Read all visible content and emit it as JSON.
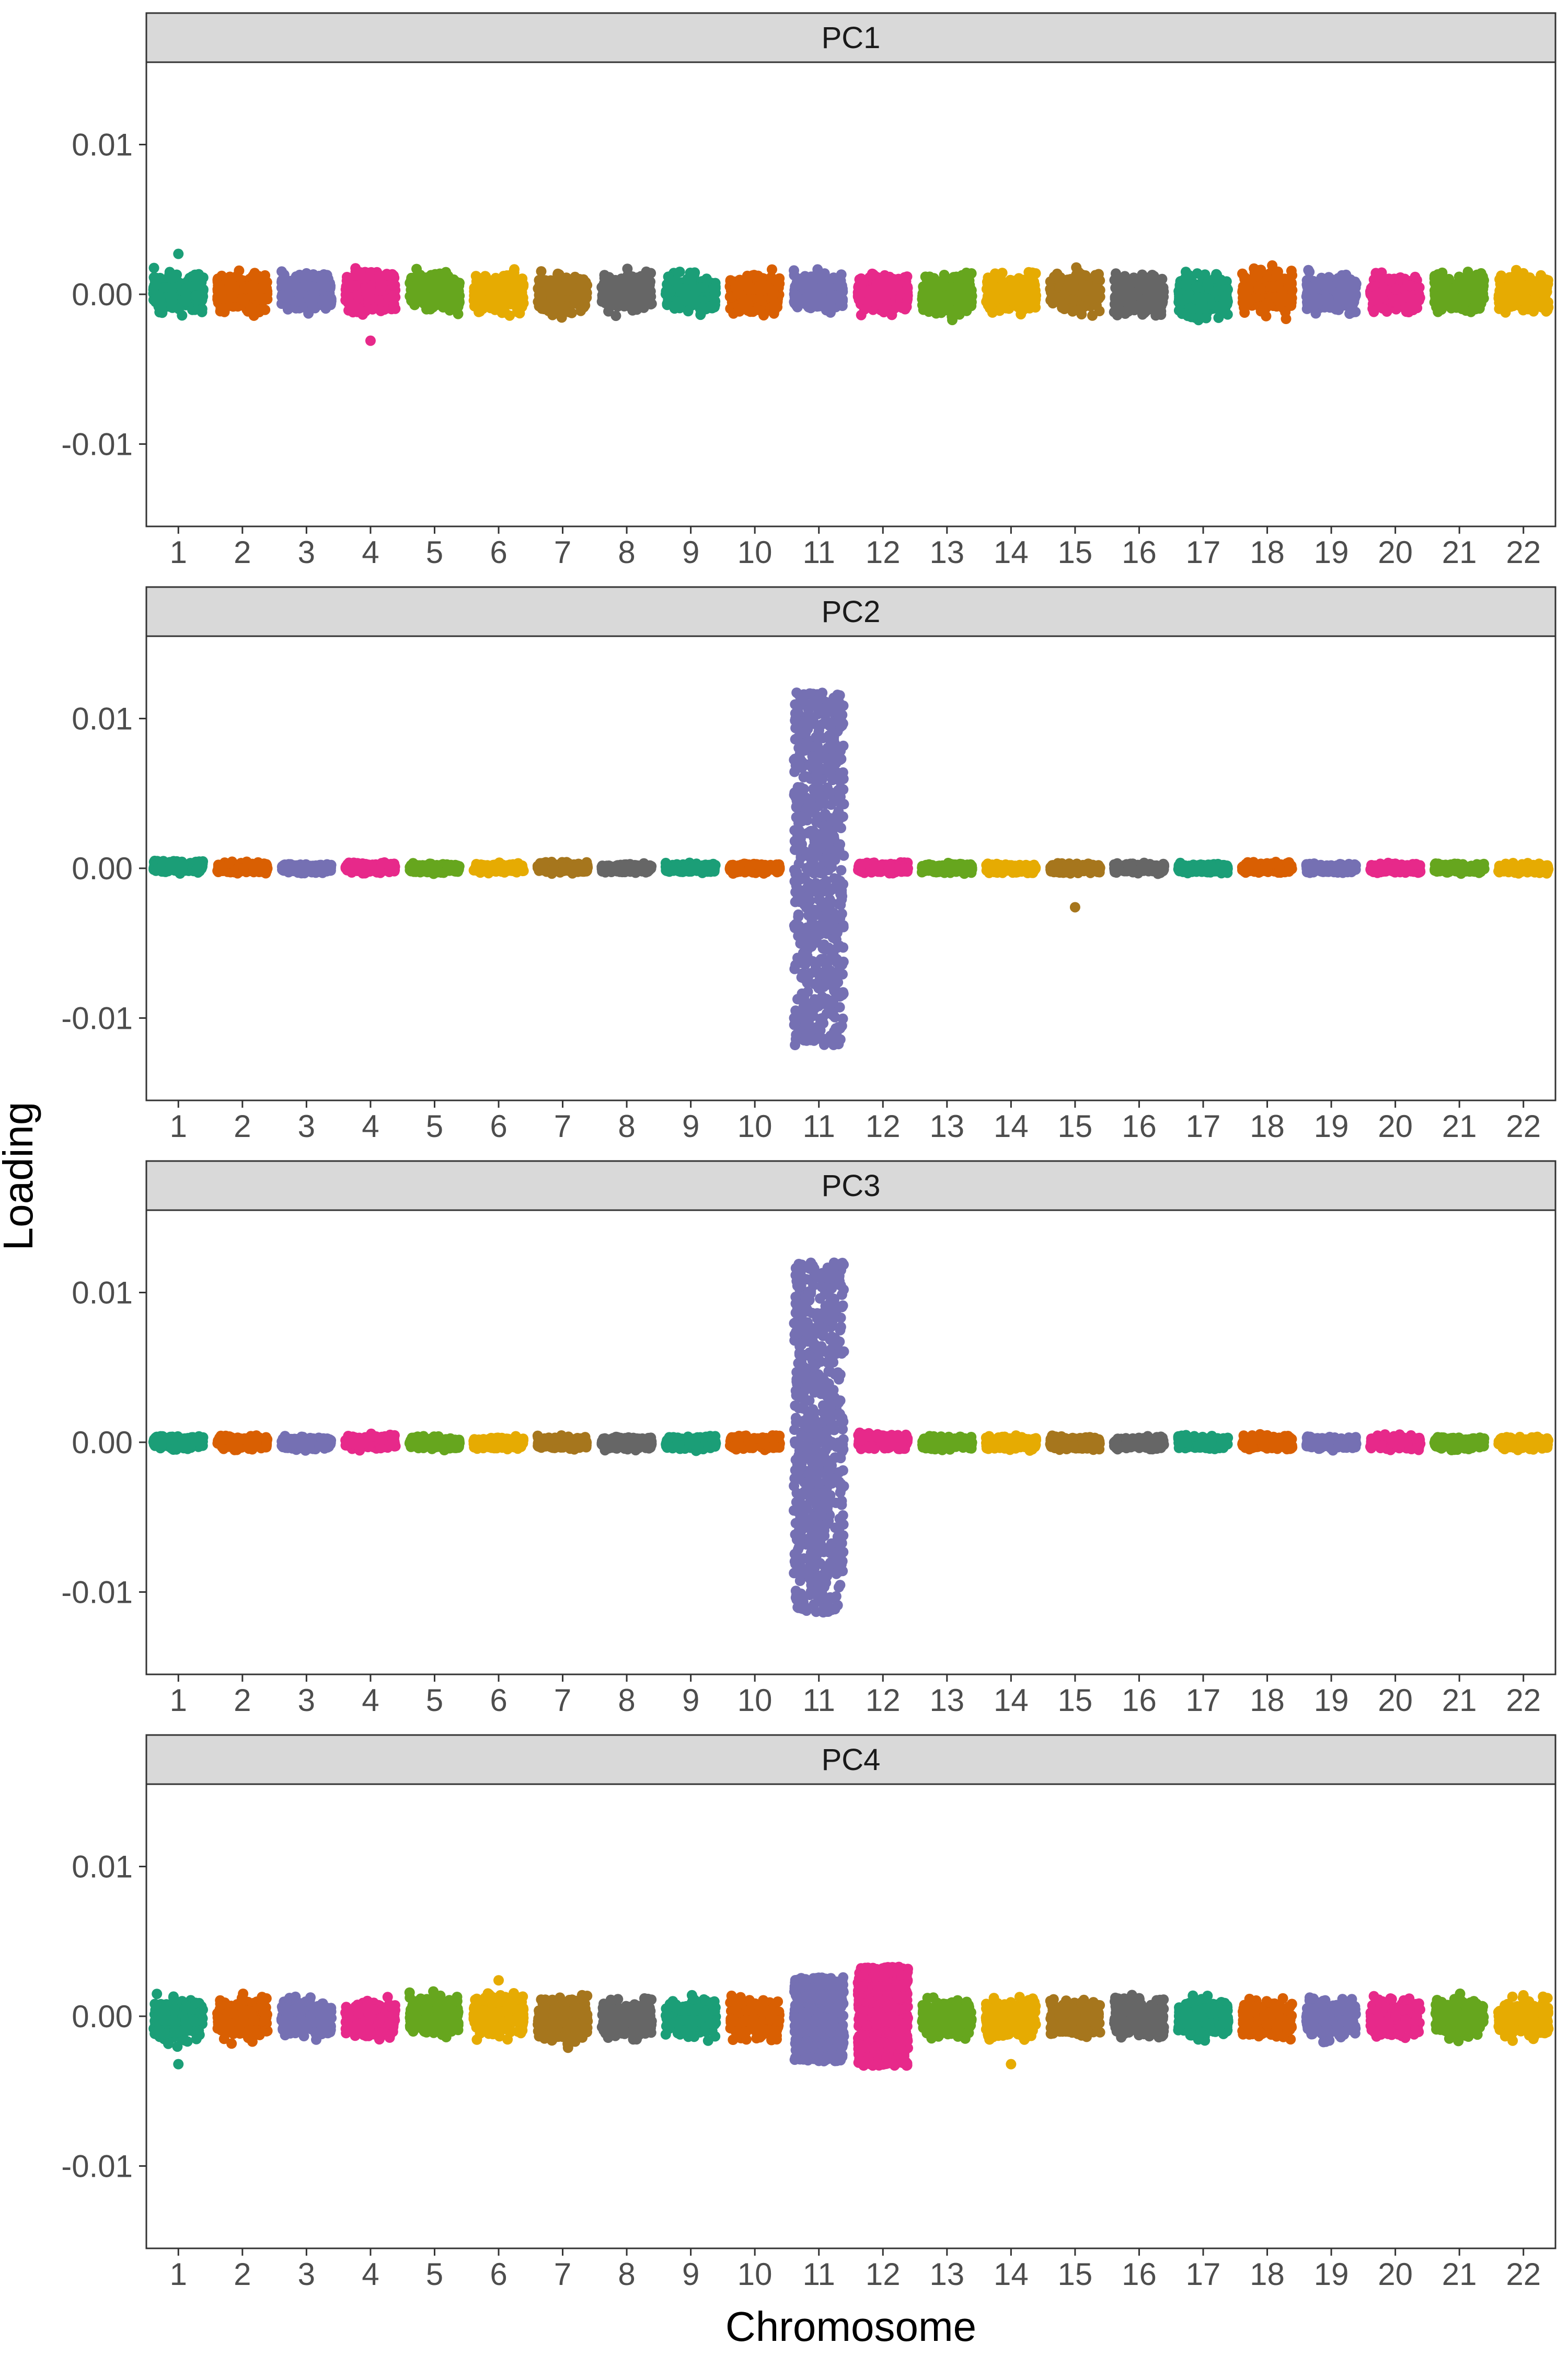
{
  "chart_data": {
    "type": "scatter",
    "title": "",
    "xlabel": "Chromosome",
    "ylabel": "Loading",
    "ylim": [
      -0.0155,
      0.0155
    ],
    "yticks": [
      -0.01,
      0.0,
      0.01
    ],
    "ytick_labels": [
      "-0.01",
      "0.00",
      "0.01"
    ],
    "categories": [
      "1",
      "2",
      "3",
      "4",
      "5",
      "6",
      "7",
      "8",
      "9",
      "10",
      "11",
      "12",
      "13",
      "14",
      "15",
      "16",
      "17",
      "18",
      "19",
      "20",
      "21",
      "22"
    ],
    "grid": false,
    "legend": "none",
    "palette": [
      "#1b9e77",
      "#d95f02",
      "#7570b3",
      "#e7298a",
      "#66a61e",
      "#e6ab02",
      "#a6761d",
      "#666666"
    ],
    "strip_fill": "#d9d9d9",
    "panels": [
      {
        "name": "PC1",
        "ranges": [
          [
            -0.0016,
            0.0019
          ],
          [
            -0.0017,
            0.0018
          ],
          [
            -0.0016,
            0.0018
          ],
          [
            -0.0017,
            0.0021
          ],
          [
            -0.0016,
            0.002
          ],
          [
            -0.0016,
            0.0018
          ],
          [
            -0.0017,
            0.0018
          ],
          [
            -0.0016,
            0.0018
          ],
          [
            -0.0016,
            0.0018
          ],
          [
            -0.0019,
            0.002
          ],
          [
            -0.0016,
            0.0018
          ],
          [
            -0.0016,
            0.0018
          ],
          [
            -0.0018,
            0.0017
          ],
          [
            -0.0016,
            0.0019
          ],
          [
            -0.0016,
            0.002
          ],
          [
            -0.0018,
            0.0018
          ],
          [
            -0.002,
            0.0018
          ],
          [
            -0.0018,
            0.0021
          ],
          [
            -0.0016,
            0.0018
          ],
          [
            -0.0016,
            0.0018
          ],
          [
            -0.0016,
            0.0018
          ],
          [
            -0.0016,
            0.0018
          ]
        ],
        "outliers": [
          {
            "chr": 1,
            "y": 0.0027
          },
          {
            "chr": 4,
            "y": -0.0031
          }
        ]
      },
      {
        "name": "PC2",
        "ranges": [
          [
            -0.0004,
            0.0006
          ],
          [
            -0.0004,
            0.0005
          ],
          [
            -0.0004,
            0.0004
          ],
          [
            -0.0004,
            0.0005
          ],
          [
            -0.0004,
            0.0004
          ],
          [
            -0.0004,
            0.0004
          ],
          [
            -0.0004,
            0.0005
          ],
          [
            -0.0004,
            0.0004
          ],
          [
            -0.0004,
            0.0004
          ],
          [
            -0.0004,
            0.0004
          ],
          [
            -0.0118,
            0.0118
          ],
          [
            -0.0004,
            0.0005
          ],
          [
            -0.0004,
            0.0004
          ],
          [
            -0.0004,
            0.0004
          ],
          [
            -0.0004,
            0.0004
          ],
          [
            -0.0004,
            0.0004
          ],
          [
            -0.0004,
            0.0004
          ],
          [
            -0.0004,
            0.0005
          ],
          [
            -0.0004,
            0.0004
          ],
          [
            -0.0004,
            0.0004
          ],
          [
            -0.0004,
            0.0004
          ],
          [
            -0.0004,
            0.0004
          ]
        ],
        "outliers": [
          {
            "chr": 15,
            "y": -0.0026
          }
        ]
      },
      {
        "name": "PC3",
        "ranges": [
          [
            -0.0006,
            0.0006
          ],
          [
            -0.0006,
            0.0006
          ],
          [
            -0.0006,
            0.0005
          ],
          [
            -0.0006,
            0.0006
          ],
          [
            -0.0006,
            0.0005
          ],
          [
            -0.0006,
            0.0005
          ],
          [
            -0.0006,
            0.0005
          ],
          [
            -0.0006,
            0.0005
          ],
          [
            -0.0006,
            0.0005
          ],
          [
            -0.0006,
            0.0006
          ],
          [
            -0.0115,
            0.012
          ],
          [
            -0.0006,
            0.0008
          ],
          [
            -0.0006,
            0.0005
          ],
          [
            -0.0006,
            0.0005
          ],
          [
            -0.0006,
            0.0005
          ],
          [
            -0.0006,
            0.0005
          ],
          [
            -0.0006,
            0.0006
          ],
          [
            -0.0006,
            0.0006
          ],
          [
            -0.0006,
            0.0005
          ],
          [
            -0.0006,
            0.0006
          ],
          [
            -0.0006,
            0.0005
          ],
          [
            -0.0006,
            0.0005
          ]
        ],
        "outliers": []
      },
      {
        "name": "PC4",
        "ranges": [
          [
            -0.0022,
            0.0018
          ],
          [
            -0.002,
            0.0016
          ],
          [
            -0.0018,
            0.0016
          ],
          [
            -0.002,
            0.0016
          ],
          [
            -0.0018,
            0.0018
          ],
          [
            -0.0018,
            0.002
          ],
          [
            -0.0022,
            0.0017
          ],
          [
            -0.0018,
            0.0016
          ],
          [
            -0.0018,
            0.0016
          ],
          [
            -0.002,
            0.0018
          ],
          [
            -0.003,
            0.0026
          ],
          [
            -0.0033,
            0.0033
          ],
          [
            -0.0018,
            0.0016
          ],
          [
            -0.002,
            0.0016
          ],
          [
            -0.0018,
            0.0016
          ],
          [
            -0.0018,
            0.0016
          ],
          [
            -0.0018,
            0.0016
          ],
          [
            -0.0018,
            0.0016
          ],
          [
            -0.002,
            0.0018
          ],
          [
            -0.0018,
            0.0016
          ],
          [
            -0.0018,
            0.0016
          ],
          [
            -0.0018,
            0.0016
          ]
        ],
        "outliers": [
          {
            "chr": 1,
            "y": -0.0032
          },
          {
            "chr": 6,
            "y": 0.0024
          },
          {
            "chr": 14,
            "y": -0.0032
          },
          {
            "chr": 22,
            "y": 0.0014
          }
        ]
      }
    ]
  }
}
